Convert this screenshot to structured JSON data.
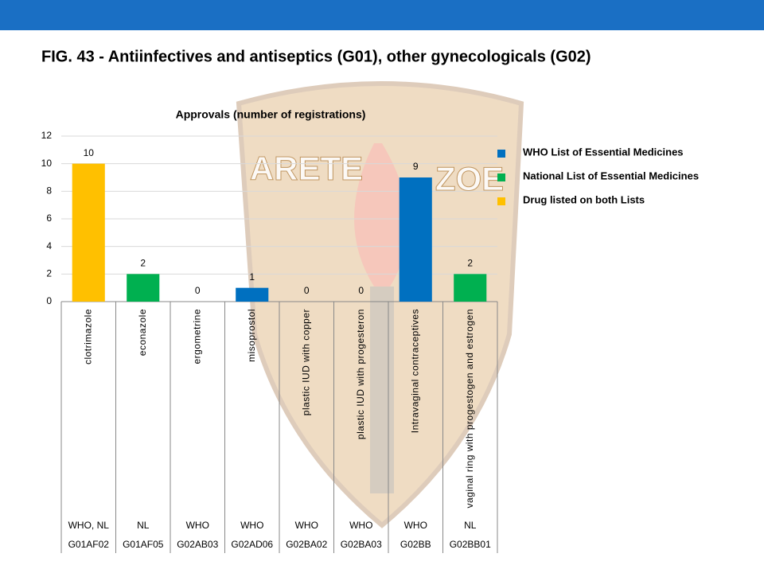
{
  "chart_data": {
    "type": "bar",
    "figure_title": "FIG. 43 - Antiinfectives and antiseptics (G01), other gynecologicals (G02)",
    "title": "Approvals (number of registrations)",
    "watermark": [
      "ARETE",
      "ZOE"
    ],
    "categories": [
      "clotrimazole",
      "econazole",
      "ergometrine",
      "misoprostol",
      "plastic IUD with copper",
      "plastic IUD with progesteron",
      "Intravaginal contraceptives",
      "vaginal ring with progestogen and estrogen"
    ],
    "values": [
      10,
      2,
      0,
      1,
      0,
      0,
      9,
      2
    ],
    "colors": [
      "#ffc000",
      "#00b050",
      "#0070c0",
      "#0070c0",
      "#0070c0",
      "#0070c0",
      "#0070c0",
      "#00b050"
    ],
    "lists": [
      "WHO, NL",
      "NL",
      "WHO",
      "WHO",
      "WHO",
      "WHO",
      "WHO",
      "NL"
    ],
    "codes": [
      "G01AF02",
      "G01AF05",
      "G02AB03",
      "G02AD06",
      "G02BA02",
      "G02BA03",
      "G02BB",
      "G02BB01"
    ],
    "legend": [
      {
        "name": "WHO List of Essential Medicines",
        "color": "#0070c0"
      },
      {
        "name": "National List of Essential Medicines",
        "color": "#00b050"
      },
      {
        "name": "Drug listed on both Lists",
        "color": "#ffc000"
      }
    ],
    "ylim": [
      0,
      12
    ],
    "yticks": [
      0,
      2,
      4,
      6,
      8,
      10,
      12
    ],
    "grid": true
  }
}
